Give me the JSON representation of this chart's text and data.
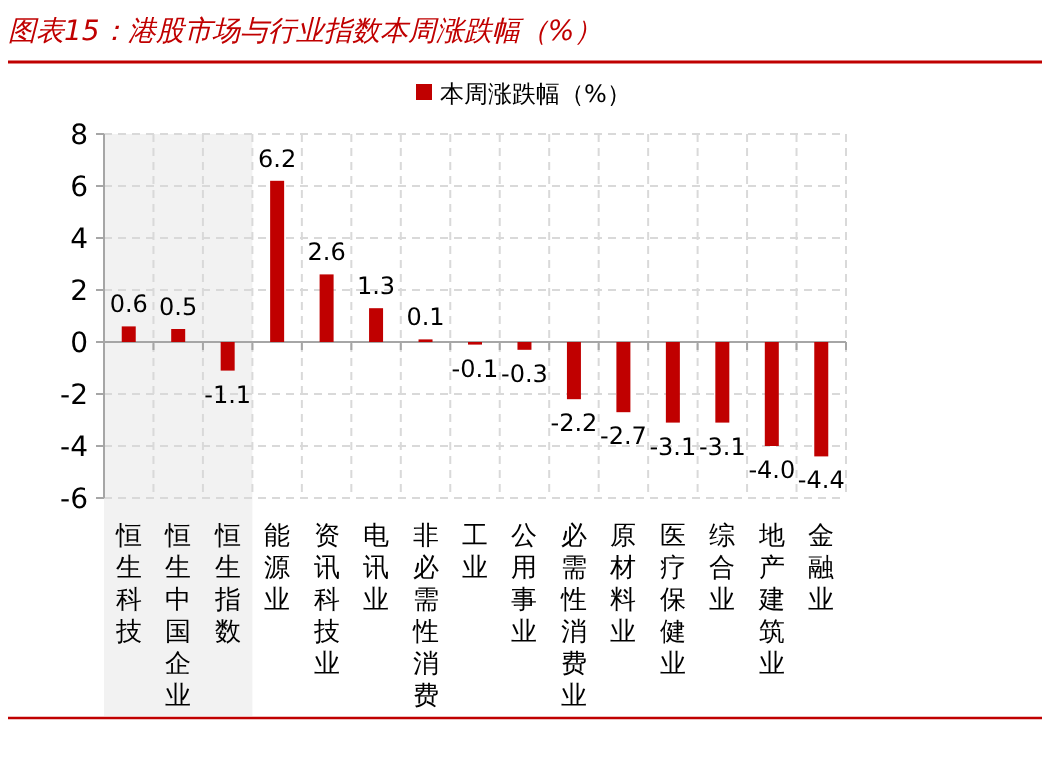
{
  "chart_data": {
    "type": "bar",
    "title": "图表15：港股市场与行业指数本周涨跌幅（%）",
    "categories": [
      "恒生科技",
      "恒生中国企业",
      "恒生指数",
      "能源业",
      "资讯科技业",
      "电讯业",
      "非必需性消费",
      "工业",
      "公用事业",
      "必需性消费业",
      "原材料业",
      "医疗保健业",
      "综合业",
      "地产建筑业",
      "金融业"
    ],
    "series": [
      {
        "name": "本周涨跌幅（%）",
        "color": "#c00000",
        "values": [
          0.6,
          0.5,
          -1.1,
          6.2,
          2.6,
          1.3,
          0.1,
          -0.1,
          -0.3,
          -2.2,
          -2.7,
          -3.1,
          -3.1,
          -4.0,
          -4.4
        ],
        "value_labels": [
          "0.6",
          "0.5",
          "-1.1",
          "6.2",
          "2.6",
          "1.3",
          "0.1",
          "-0.1",
          "-0.3",
          "-2.2",
          "-2.7",
          "-3.1",
          "-3.1",
          "-4.0",
          "-4.4"
        ]
      }
    ],
    "ylim": [
      -6,
      8
    ],
    "yticks": [
      -6,
      -4,
      -2,
      0,
      2,
      4,
      6,
      8
    ],
    "grid": true,
    "legend": "top",
    "bands": [
      {
        "axis": "x",
        "from": "恒生科技",
        "to": "恒生指数",
        "color": "#f2f2f2"
      }
    ]
  }
}
